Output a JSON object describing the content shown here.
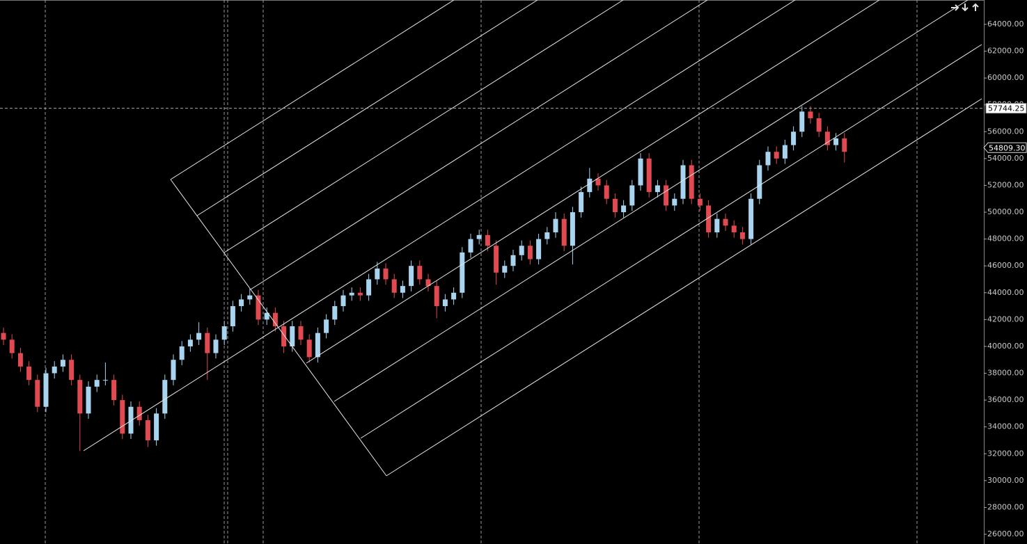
{
  "chart_data": {
    "type": "candlestick",
    "up_color": "#a8d4f0",
    "down_color": "#e04a50",
    "ylim": [
      25274,
      65814
    ],
    "yticks": [
      {
        "value": 26000,
        "label": "26000.00"
      },
      {
        "value": 28000,
        "label": "28000.00"
      },
      {
        "value": 30000,
        "label": "30000.00"
      },
      {
        "value": 32000,
        "label": "32000.00"
      },
      {
        "value": 34000,
        "label": "34000.00"
      },
      {
        "value": 36000,
        "label": "36000.00"
      },
      {
        "value": 38000,
        "label": "38000.00"
      },
      {
        "value": 40000,
        "label": "40000.00"
      },
      {
        "value": 42000,
        "label": "42000.00"
      },
      {
        "value": 44000,
        "label": "44000.00"
      },
      {
        "value": 46000,
        "label": "46000.00"
      },
      {
        "value": 48000,
        "label": "48000.00"
      },
      {
        "value": 50000,
        "label": "50000.00"
      },
      {
        "value": 52000,
        "label": "52000.00"
      },
      {
        "value": 54000,
        "label": "54000.00"
      },
      {
        "value": 56000,
        "label": "56000.00"
      },
      {
        "value": 58000,
        "label": "58000.00"
      },
      {
        "value": 60000,
        "label": "60000.00"
      },
      {
        "value": 62000,
        "label": "62000.00"
      },
      {
        "value": 64000,
        "label": "64000.00"
      }
    ],
    "grid": false,
    "crosshair": {
      "value": 57744.25,
      "label": "57744.25"
    },
    "last_price": {
      "value": 54809.3,
      "label": "54809.30"
    },
    "open": [
      41000,
      40500,
      39500,
      38500,
      37500,
      35500,
      38000,
      38500,
      39000,
      37500,
      35000,
      37000,
      37500,
      37500,
      36000,
      33500,
      35500,
      34500,
      33000,
      35000,
      37500,
      39000,
      40000,
      40500,
      41000,
      39500,
      40500,
      41500,
      43000,
      43500,
      43800,
      42000,
      42500,
      41500,
      40000,
      41500,
      40500,
      39200,
      41000,
      42000,
      43000,
      43800,
      44000,
      43800,
      45000,
      45800,
      45000,
      44000,
      44500,
      46000,
      45000,
      44500,
      43000,
      43500,
      44000,
      47000,
      48000,
      48300,
      47500,
      45500,
      46000,
      46800,
      47500,
      46500,
      48000,
      48500,
      49500,
      47500,
      50000,
      51500,
      52500,
      52000,
      51000,
      50000,
      50500,
      52000,
      54000,
      51500,
      52000,
      50500,
      51000,
      53500,
      51000,
      50500,
      48500,
      49500,
      49000,
      48500,
      48000,
      51000,
      53500,
      54500,
      54000,
      55000,
      56000,
      57500,
      57000,
      56000,
      55000,
      55500
    ],
    "high": [
      41400,
      40900,
      39900,
      38900,
      37900,
      38400,
      38900,
      39400,
      39400,
      37900,
      37400,
      37900,
      38800,
      37900,
      36400,
      35900,
      35900,
      34900,
      35400,
      37900,
      39400,
      40400,
      40900,
      41800,
      41400,
      40900,
      41900,
      43400,
      43900,
      44300,
      44200,
      42900,
      42900,
      41900,
      41900,
      41900,
      40900,
      41400,
      42400,
      43400,
      44200,
      44400,
      44400,
      45400,
      46300,
      46200,
      45400,
      44900,
      46400,
      46400,
      45400,
      44900,
      43900,
      44400,
      47400,
      48400,
      48700,
      48700,
      47900,
      46400,
      47200,
      47900,
      47900,
      48400,
      48900,
      50000,
      49900,
      50400,
      51900,
      53300,
      52900,
      52400,
      51400,
      50900,
      52400,
      54400,
      54400,
      52400,
      52400,
      51400,
      53900,
      53900,
      51400,
      50900,
      49900,
      49900,
      49400,
      48900,
      51400,
      53900,
      54900,
      54900,
      55400,
      56400,
      57900,
      57900,
      57400,
      56400,
      55900,
      55900
    ],
    "low": [
      40100,
      39100,
      38100,
      37100,
      35100,
      35100,
      37600,
      38100,
      37100,
      32200,
      34600,
      36600,
      37100,
      35600,
      33100,
      33100,
      34100,
      32500,
      32600,
      34600,
      37100,
      38600,
      39600,
      40100,
      37500,
      39100,
      40100,
      41100,
      42600,
      43100,
      41600,
      41600,
      41100,
      39500,
      39600,
      40100,
      38800,
      38800,
      40600,
      41600,
      42600,
      43400,
      43400,
      43400,
      44600,
      44600,
      43600,
      43600,
      44100,
      44600,
      44100,
      42100,
      42600,
      43100,
      43600,
      46600,
      47600,
      47100,
      44600,
      45100,
      45600,
      46400,
      46100,
      46100,
      47600,
      48100,
      47100,
      46100,
      49600,
      51100,
      51600,
      50600,
      49600,
      49600,
      50100,
      51600,
      51100,
      51100,
      50100,
      50100,
      50600,
      50600,
      50100,
      48100,
      48100,
      48600,
      48100,
      47600,
      47600,
      50600,
      53100,
      53600,
      53600,
      54600,
      55600,
      56600,
      55600,
      54600,
      54600,
      53700
    ],
    "close": [
      40500,
      39500,
      38500,
      37500,
      35500,
      38000,
      38500,
      39000,
      37500,
      35000,
      37000,
      37500,
      37500,
      36000,
      33500,
      35500,
      34500,
      33000,
      35000,
      37500,
      39000,
      40000,
      40500,
      41000,
      39500,
      40500,
      41500,
      43000,
      43500,
      43800,
      42000,
      42500,
      41500,
      40000,
      41500,
      40500,
      39200,
      41000,
      42000,
      43000,
      43800,
      44000,
      43800,
      45000,
      45800,
      45000,
      44000,
      44500,
      46000,
      45000,
      44500,
      43000,
      43500,
      44000,
      47000,
      48000,
      48300,
      47500,
      45500,
      46000,
      46800,
      47500,
      46500,
      48000,
      48500,
      49500,
      47500,
      50000,
      51500,
      52500,
      52000,
      51000,
      50000,
      50500,
      52000,
      54000,
      51500,
      52000,
      50500,
      51000,
      53500,
      51000,
      50500,
      48500,
      49500,
      49000,
      48500,
      48000,
      51000,
      53500,
      54500,
      54000,
      55000,
      56000,
      57500,
      57000,
      56000,
      55000,
      55500,
      54500
    ]
  }
}
